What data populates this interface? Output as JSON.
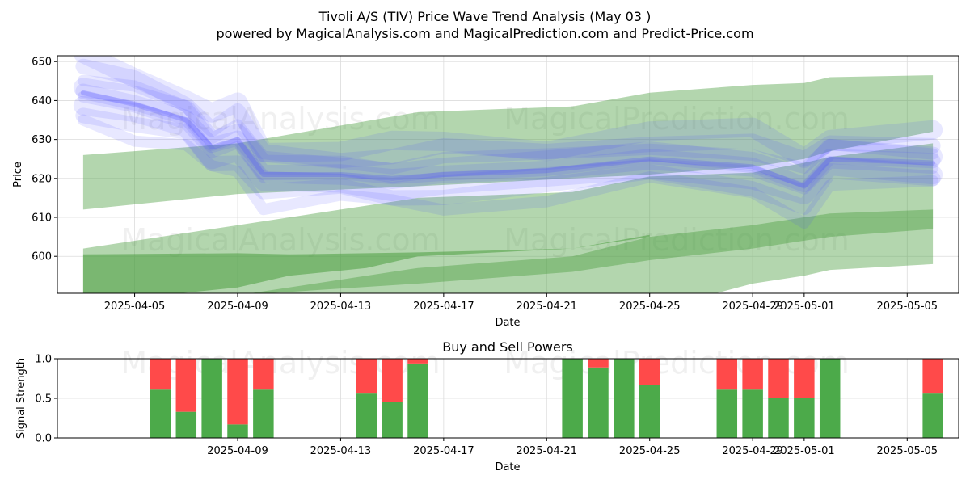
{
  "title_line1": "Tivoli A/S (TIV) Price Wave Trend Analysis (May 03 )",
  "title_line2": "powered by MagicalAnalysis.com and MagicalPrediction.com and Predict-Price.com",
  "watermarks": [
    "MagicalAnalysis.com",
    "MagicalPrediction.com"
  ],
  "colors": {
    "band": "#4a9e3f",
    "wave": "#4a4aff",
    "buy": "#4caa4a",
    "sell": "#ff4a4a",
    "grid": "#dcdcdc"
  },
  "chart_data": [
    {
      "type": "area",
      "title": "",
      "xlabel": "Date",
      "ylabel": "Price",
      "xlim": [
        "2025-04-02",
        "2025-05-07"
      ],
      "ylim": [
        590.5,
        651.5
      ],
      "y_ticks": [
        600,
        610,
        620,
        630,
        640,
        650
      ],
      "x_ticks": [
        "2025-04-05",
        "2025-04-09",
        "2025-04-13",
        "2025-04-17",
        "2025-04-21",
        "2025-04-25",
        "2025-04-29",
        "2025-05-01",
        "2025-05-05"
      ],
      "grid": true,
      "bands": [
        {
          "x": [
            "2025-04-03",
            "2025-04-09",
            "2025-04-16",
            "2025-04-22",
            "2025-04-25",
            "2025-04-29",
            "2025-05-01",
            "2025-05-02",
            "2025-05-06"
          ],
          "upper": [
            626,
            629,
            637,
            638.5,
            642,
            644,
            644.5,
            646,
            646.5
          ],
          "lower": [
            612,
            616,
            618,
            620,
            621,
            623,
            625,
            627,
            632
          ]
        },
        {
          "x": [
            "2025-04-03",
            "2025-04-09",
            "2025-04-16",
            "2025-04-22",
            "2025-04-25",
            "2025-04-29",
            "2025-05-01",
            "2025-05-02",
            "2025-05-06"
          ],
          "upper": [
            602,
            608,
            615,
            616.5,
            620.5,
            621.5,
            624,
            625.5,
            629
          ],
          "lower": [
            588,
            590,
            593,
            596,
            599,
            602,
            604,
            605,
            607
          ]
        },
        {
          "x": [
            "2025-04-03",
            "2025-04-09",
            "2025-04-16",
            "2025-04-22",
            "2025-04-25",
            "2025-04-29",
            "2025-05-01",
            "2025-05-02",
            "2025-05-06"
          ],
          "upper": [
            586,
            590,
            597,
            600,
            605,
            608,
            610,
            611,
            612
          ],
          "lower": [
            572,
            575,
            579,
            582,
            586,
            593,
            595,
            596.5,
            598
          ]
        },
        {
          "x": [
            "2025-04-03",
            "2025-04-09",
            "2025-04-11",
            "2025-04-14",
            "2025-04-16",
            "2025-04-22",
            "2025-04-25"
          ],
          "upper": [
            600.5,
            600.8,
            600.5,
            600.8,
            601,
            602,
            605.5
          ],
          "lower": [
            588,
            592,
            595,
            597,
            600,
            602,
            605
          ]
        }
      ],
      "wave_center": {
        "x": [
          "2025-04-03",
          "2025-04-05",
          "2025-04-07",
          "2025-04-08",
          "2025-04-09",
          "2025-04-10",
          "2025-04-13",
          "2025-04-15",
          "2025-04-17",
          "2025-04-21",
          "2025-04-25",
          "2025-04-29",
          "2025-05-01",
          "2025-05-02",
          "2025-05-06"
        ],
        "y": [
          642,
          639,
          635,
          628,
          630,
          621,
          621,
          620,
          621,
          622,
          625,
          623,
          618,
          625,
          624
        ]
      }
    },
    {
      "type": "bar",
      "title": "Buy and Sell Powers",
      "xlabel": "Date",
      "ylabel": "Signal Strength",
      "xlim": [
        "2025-04-02",
        "2025-05-07"
      ],
      "ylim": [
        0,
        1.0
      ],
      "y_ticks": [
        0.0,
        0.5,
        1.0
      ],
      "x_ticks": [
        "2025-04-09",
        "2025-04-13",
        "2025-04-17",
        "2025-04-21",
        "2025-04-25",
        "2025-04-29",
        "2025-05-01",
        "2025-05-05"
      ],
      "grid": true,
      "dates": [
        "2025-04-06",
        "2025-04-07",
        "2025-04-08",
        "2025-04-09",
        "2025-04-10",
        "2025-04-14",
        "2025-04-15",
        "2025-04-16",
        "2025-04-22",
        "2025-04-23",
        "2025-04-24",
        "2025-04-25",
        "2025-04-28",
        "2025-04-29",
        "2025-04-30",
        "2025-05-01",
        "2025-05-02",
        "2025-05-06"
      ],
      "buy": [
        0.61,
        0.33,
        1.0,
        0.17,
        0.61,
        0.56,
        0.45,
        0.94,
        1.0,
        0.89,
        1.0,
        0.67,
        0.61,
        0.61,
        0.5,
        0.5,
        1.0,
        0.56
      ]
    }
  ]
}
